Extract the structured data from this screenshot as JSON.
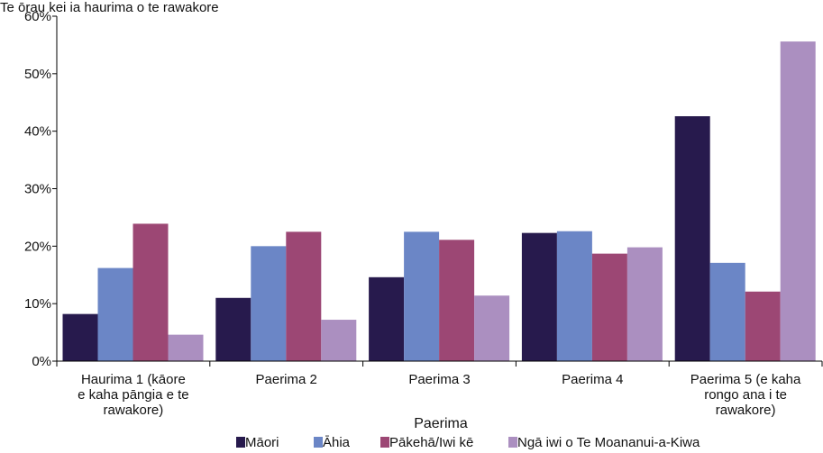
{
  "chart_data": {
    "type": "bar",
    "title": "Te ōrau kei ia haurima o te rawakore",
    "xlabel": "Paerima",
    "ylabel": "",
    "ylim": [
      0,
      60
    ],
    "yticks": [
      "0%",
      "10%",
      "20%",
      "30%",
      "40%",
      "50%",
      "60%"
    ],
    "categories": [
      "Haurima 1 (kāore e kaha pāngia e te rawakore)",
      "Paerima 2",
      "Paerima 3",
      "Paerima 4",
      "Paerima 5 (e kaha rongo ana i te rawakore)"
    ],
    "category_lines": [
      [
        "Haurima 1 (kāore",
        "e kaha pāngia e te",
        "rawakore)"
      ],
      [
        "Paerima 2"
      ],
      [
        "Paerima 3"
      ],
      [
        "Paerima 4"
      ],
      [
        "Paerima 5 (e kaha",
        "rongo ana i te",
        "rawakore)"
      ]
    ],
    "series": [
      {
        "name": "Māori",
        "color": "#271a4d",
        "values": [
          8.2,
          11.0,
          14.6,
          22.3,
          42.6
        ]
      },
      {
        "name": "Āhia",
        "color": "#6b86c6",
        "values": [
          16.2,
          20.0,
          22.5,
          22.6,
          17.1
        ]
      },
      {
        "name": "Pākehā/Iwi kē",
        "color": "#9c4774",
        "values": [
          23.9,
          22.5,
          21.1,
          18.7,
          12.1
        ]
      },
      {
        "name": "Ngā iwi o Te Moananui-a-Kiwa",
        "color": "#ab8fc0",
        "values": [
          4.6,
          7.2,
          11.4,
          19.8,
          55.6
        ]
      }
    ],
    "grid": false,
    "legend_position": "bottom"
  }
}
